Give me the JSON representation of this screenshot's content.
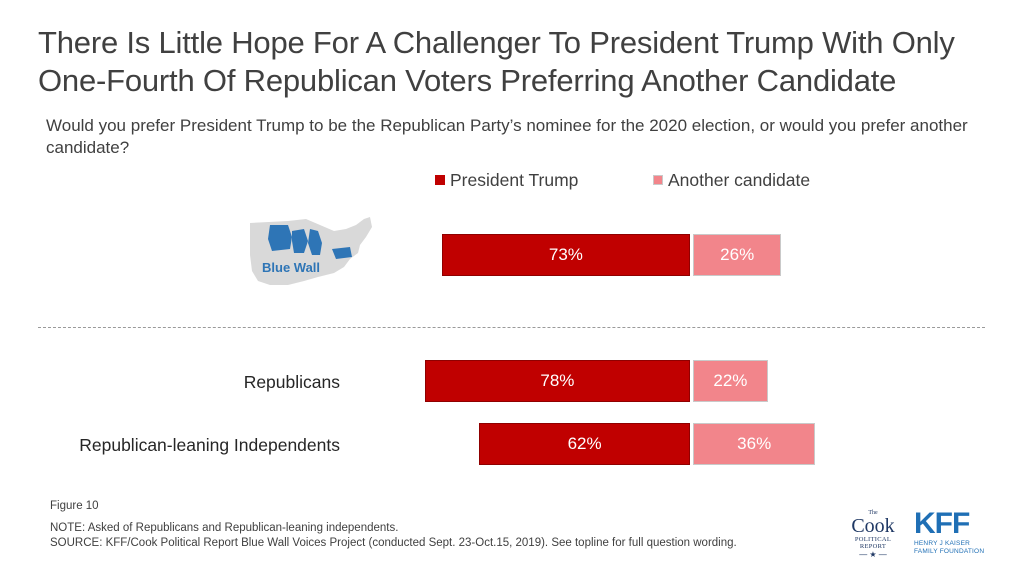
{
  "title": "There Is Little Hope For A Challenger To President Trump With Only One-Fourth Of Republican Voters Preferring Another Candidate",
  "subtitle": "Would you prefer President Trump to be the Republican Party’s nominee for the 2020 election, or would you prefer another candidate?",
  "legend": [
    {
      "label": "President Trump",
      "color": "#c00000"
    },
    {
      "label": "Another candidate",
      "color": "#f2858b"
    }
  ],
  "chart_data": {
    "type": "bar",
    "orientation": "horizontal-diverging",
    "title": "There Is Little Hope For A Challenger To President Trump With Only One-Fourth Of Republican Voters Preferring Another Candidate",
    "categories": [
      "Blue Wall",
      "Republicans",
      "Republican-leaning Independents"
    ],
    "series": [
      {
        "name": "President Trump",
        "values": [
          73,
          78,
          62
        ],
        "color": "#c00000"
      },
      {
        "name": "Another candidate",
        "values": [
          26,
          22,
          36
        ],
        "color": "#f2858b"
      }
    ],
    "data_labels": [
      [
        "73%",
        "26%"
      ],
      [
        "78%",
        "22%"
      ],
      [
        "62%",
        "36%"
      ]
    ],
    "xlabel": "",
    "ylabel": "",
    "legend_position": "top",
    "grid": false
  },
  "map": {
    "label": "Blue Wall",
    "highlight_color": "#2e75b6",
    "base_color": "#d9d9d9"
  },
  "footer": {
    "figure": "Figure 10",
    "note": "NOTE: Asked of Republicans and Republican-leaning independents.",
    "source": "SOURCE: KFF/Cook Political Report Blue Wall Voices Project (conducted Sept. 23-Oct.15, 2019). See topline for full question wording."
  },
  "logos": {
    "cook": {
      "the": "The",
      "name": "Cook",
      "line1": "POLITICAL",
      "line2": "REPORT"
    },
    "kff": {
      "mark": "KFF",
      "line1": "HENRY J KAISER",
      "line2": "FAMILY FOUNDATION"
    }
  }
}
